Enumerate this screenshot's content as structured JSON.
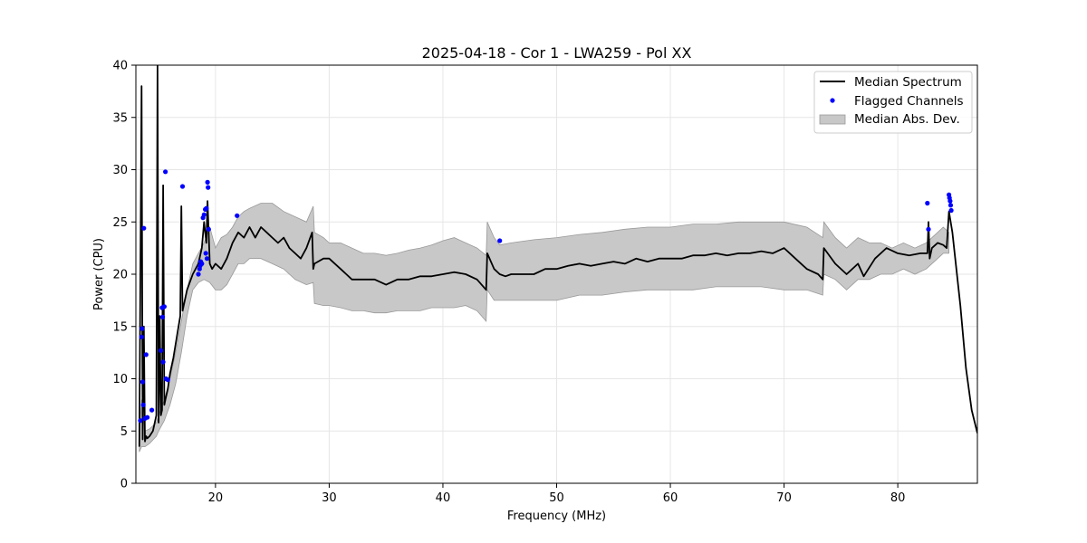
{
  "chart_data": {
    "type": "line",
    "title": "2025-04-18 - Cor 1 - LWA259 - Pol XX",
    "xlabel": "Frequency (MHz)",
    "ylabel": "Power (CPU)",
    "xlim": [
      13,
      87
    ],
    "ylim": [
      0,
      40
    ],
    "xticks": [
      20,
      30,
      40,
      50,
      60,
      70,
      80
    ],
    "yticks": [
      0,
      5,
      10,
      15,
      20,
      25,
      30,
      35,
      40
    ],
    "grid": true,
    "legend_position": "top-right",
    "legend": [
      "Median Spectrum",
      "Flagged Channels",
      "Median Abs. Dev."
    ],
    "colors": {
      "median": "#000000",
      "flagged": "#0000ff",
      "band_fill": "#c8c8c8",
      "band_edge": "#999999",
      "grid": "#e6e6e6"
    },
    "series": [
      {
        "name": "Median Spectrum",
        "x": [
          13.3,
          13.5,
          13.6,
          13.7,
          13.8,
          13.9,
          14.0,
          14.2,
          14.5,
          14.8,
          14.9,
          15.0,
          15.1,
          15.2,
          15.3,
          15.4,
          15.5,
          15.6,
          15.8,
          16.0,
          16.3,
          16.6,
          16.9,
          17.0,
          17.1,
          17.5,
          18.0,
          18.5,
          18.8,
          19.0,
          19.2,
          19.3,
          19.5,
          19.7,
          20.0,
          20.5,
          21.0,
          21.5,
          22.0,
          22.5,
          23.0,
          23.5,
          24.0,
          24.5,
          25.0,
          25.5,
          26.0,
          26.5,
          27.0,
          27.5,
          28.0,
          28.5,
          28.6,
          28.7,
          29.5,
          30.0,
          30.5,
          31.0,
          31.5,
          32.0,
          33.0,
          34.0,
          35.0,
          36.0,
          37.0,
          38.0,
          39.0,
          40.0,
          41.0,
          42.0,
          43.0,
          43.8,
          43.9,
          44.5,
          45.0,
          45.5,
          46.0,
          47.0,
          48.0,
          49.0,
          50.0,
          51.0,
          52.0,
          53.0,
          54.0,
          55.0,
          56.0,
          57.0,
          58.0,
          59.0,
          60.0,
          61.0,
          62.0,
          63.0,
          64.0,
          65.0,
          66.0,
          67.0,
          68.0,
          69.0,
          70.0,
          71.0,
          72.0,
          73.0,
          73.4,
          73.5,
          74.5,
          75.5,
          76.5,
          77.0,
          78.0,
          79.0,
          80.0,
          81.0,
          82.0,
          82.6,
          82.7,
          82.8,
          83.0,
          83.5,
          84.0,
          84.3,
          84.5,
          84.8,
          85.0,
          85.5,
          86.0,
          86.5,
          87.0
        ],
        "values": [
          3.5,
          38.0,
          4.2,
          15.0,
          4.0,
          4.5,
          4.3,
          4.5,
          5.0,
          6.5,
          40.0,
          5.8,
          16.0,
          6.5,
          7.0,
          28.5,
          7.5,
          8.0,
          9.0,
          10.5,
          12.0,
          14.0,
          16.0,
          26.5,
          16.5,
          18.5,
          20.0,
          21.0,
          22.5,
          25.0,
          23.0,
          27.0,
          21.0,
          20.5,
          21.0,
          20.5,
          21.5,
          23.0,
          24.0,
          23.5,
          24.5,
          23.5,
          24.5,
          24.0,
          23.5,
          23.0,
          23.5,
          22.5,
          22.0,
          21.5,
          22.5,
          24.0,
          20.5,
          21.0,
          21.5,
          21.5,
          21.0,
          20.5,
          20.0,
          19.5,
          19.5,
          19.5,
          19.0,
          19.5,
          19.5,
          19.8,
          19.8,
          20.0,
          20.2,
          20.0,
          19.5,
          18.5,
          22.0,
          20.5,
          20.0,
          19.8,
          20.0,
          20.0,
          20.0,
          20.5,
          20.5,
          20.8,
          21.0,
          20.8,
          21.0,
          21.2,
          21.0,
          21.5,
          21.2,
          21.5,
          21.5,
          21.5,
          21.8,
          21.8,
          22.0,
          21.8,
          22.0,
          22.0,
          22.2,
          22.0,
          22.5,
          21.5,
          20.5,
          20.0,
          19.5,
          22.5,
          21.0,
          20.0,
          21.0,
          19.8,
          21.5,
          22.5,
          22.0,
          21.8,
          22.0,
          22.0,
          25.0,
          21.5,
          22.5,
          23.0,
          22.8,
          22.5,
          26.0,
          24.0,
          22.0,
          17.0,
          11.0,
          7.0,
          4.8
        ]
      },
      {
        "name": "Median Abs. Dev.",
        "x": [
          13.3,
          13.5,
          13.8,
          14.2,
          14.8,
          15.0,
          15.5,
          16.0,
          16.5,
          17.0,
          17.5,
          18.0,
          18.5,
          19.0,
          19.5,
          20.0,
          20.5,
          21.0,
          21.5,
          22.0,
          22.5,
          23.0,
          24.0,
          25.0,
          26.0,
          27.0,
          28.0,
          28.6,
          28.7,
          29.5,
          30.0,
          31.0,
          32.0,
          33.0,
          34.0,
          35.0,
          36.0,
          37.0,
          38.0,
          39.0,
          40.0,
          41.0,
          42.0,
          43.0,
          43.8,
          43.9,
          44.5,
          45.0,
          46.0,
          48.0,
          50.0,
          52.0,
          54.0,
          56.0,
          58.0,
          60.0,
          62.0,
          64.0,
          66.0,
          68.0,
          70.0,
          72.0,
          73.4,
          73.5,
          74.5,
          75.5,
          76.5,
          77.5,
          78.5,
          79.5,
          80.5,
          81.5,
          82.5,
          83.5,
          84.0,
          84.5
        ],
        "upper": [
          4.5,
          8.0,
          5.0,
          5.2,
          5.8,
          6.5,
          8.0,
          10.0,
          12.5,
          15.5,
          18.5,
          21.0,
          22.0,
          23.0,
          24.5,
          22.5,
          23.5,
          23.8,
          24.5,
          25.5,
          26.0,
          26.3,
          26.8,
          26.8,
          26.0,
          25.5,
          25.0,
          26.5,
          24.0,
          23.5,
          23.0,
          23.0,
          22.5,
          22.0,
          22.0,
          21.8,
          22.0,
          22.3,
          22.5,
          22.8,
          23.2,
          23.5,
          23.0,
          22.5,
          21.8,
          25.0,
          23.5,
          22.8,
          23.0,
          23.3,
          23.5,
          23.8,
          24.0,
          24.3,
          24.5,
          24.5,
          24.8,
          24.8,
          25.0,
          25.0,
          25.0,
          24.5,
          23.5,
          25.0,
          23.5,
          22.5,
          23.5,
          23.0,
          23.0,
          22.5,
          23.0,
          22.5,
          23.0,
          24.0,
          24.5,
          24.0
        ],
        "lower": [
          3.0,
          3.5,
          3.5,
          3.8,
          4.5,
          5.0,
          6.0,
          7.5,
          9.5,
          12.5,
          16.0,
          18.5,
          19.2,
          19.5,
          19.2,
          18.5,
          18.5,
          19.0,
          20.0,
          21.0,
          21.0,
          21.5,
          21.5,
          21.0,
          20.5,
          19.5,
          19.0,
          19.2,
          17.2,
          17.0,
          17.0,
          16.8,
          16.5,
          16.5,
          16.3,
          16.3,
          16.5,
          16.5,
          16.5,
          16.8,
          16.8,
          16.8,
          17.0,
          16.5,
          15.5,
          18.5,
          17.5,
          17.5,
          17.5,
          17.5,
          17.5,
          18.0,
          18.0,
          18.3,
          18.5,
          18.5,
          18.5,
          18.8,
          18.8,
          18.8,
          18.5,
          18.5,
          18.0,
          20.0,
          19.5,
          18.5,
          19.5,
          19.5,
          20.0,
          20.0,
          20.5,
          20.0,
          20.5,
          21.5,
          22.0,
          22.0
        ]
      },
      {
        "name": "Flagged Channels",
        "x": [
          13.4,
          13.5,
          13.55,
          13.6,
          13.65,
          13.7,
          13.8,
          13.9,
          14.0,
          14.4,
          15.2,
          15.3,
          15.35,
          15.4,
          15.5,
          15.6,
          15.65,
          15.8,
          17.1,
          18.5,
          18.6,
          18.65,
          18.7,
          18.8,
          18.9,
          19.0,
          19.1,
          19.15,
          19.2,
          19.25,
          19.3,
          19.35,
          19.4,
          21.9,
          45.0,
          82.6,
          82.7,
          84.5,
          84.55,
          84.6,
          84.65,
          84.7
        ],
        "values": [
          6.0,
          14.0,
          14.8,
          9.7,
          7.5,
          24.4,
          6.2,
          12.3,
          6.3,
          7.0,
          12.7,
          16.8,
          15.9,
          11.6,
          16.9,
          29.8,
          10.0,
          9.9,
          28.4,
          20.0,
          20.5,
          20.8,
          21.2,
          21.0,
          25.4,
          25.7,
          26.2,
          22.0,
          26.3,
          21.5,
          28.8,
          28.3,
          24.3,
          25.6,
          23.2,
          26.8,
          24.3,
          27.6,
          27.3,
          27.0,
          26.6,
          26.1
        ]
      }
    ]
  }
}
